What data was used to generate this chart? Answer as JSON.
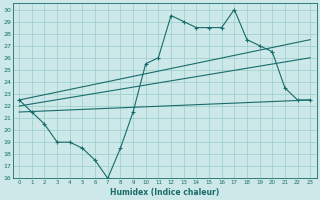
{
  "xlabel": "Humidex (Indice chaleur)",
  "background_color": "#cce8e8",
  "grid_color": "#99cccc",
  "line_color": "#1a6b6b",
  "xlim": [
    -0.5,
    23.5
  ],
  "ylim": [
    16,
    30.5
  ],
  "xticks": [
    0,
    1,
    2,
    3,
    4,
    5,
    6,
    7,
    8,
    9,
    10,
    11,
    12,
    13,
    14,
    15,
    16,
    17,
    18,
    19,
    20,
    21,
    22,
    23
  ],
  "yticks": [
    16,
    17,
    18,
    19,
    20,
    21,
    22,
    23,
    24,
    25,
    26,
    27,
    28,
    29,
    30
  ],
  "main_line": {
    "x": [
      0,
      1,
      2,
      3,
      4,
      5,
      6,
      7,
      8,
      9,
      10,
      11,
      12,
      13,
      14,
      15,
      16,
      17,
      18,
      19,
      20,
      21,
      22,
      23
    ],
    "y": [
      22.5,
      21.5,
      20.5,
      19.0,
      19.0,
      18.5,
      17.5,
      16.0,
      18.5,
      21.5,
      25.5,
      26.0,
      29.5,
      29.0,
      28.5,
      28.5,
      28.5,
      30.0,
      27.5,
      27.0,
      26.5,
      23.5,
      22.5,
      22.5
    ]
  },
  "upper_line": {
    "x": [
      0,
      23
    ],
    "y": [
      22.5,
      27.5
    ]
  },
  "mid_line": {
    "x": [
      0,
      23
    ],
    "y": [
      22.0,
      26.0
    ]
  },
  "lower_line": {
    "x": [
      0,
      23
    ],
    "y": [
      21.5,
      22.5
    ]
  }
}
